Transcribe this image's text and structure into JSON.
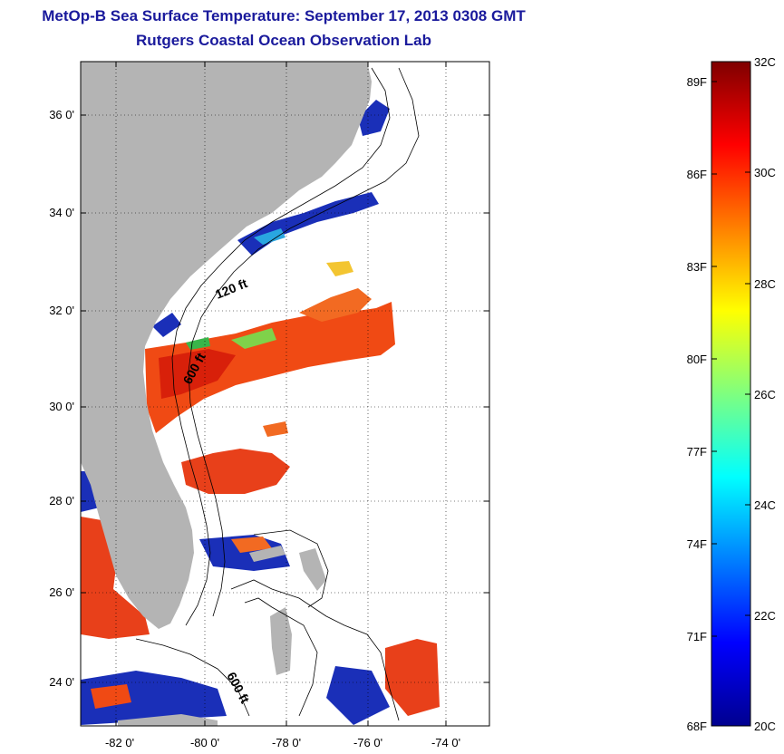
{
  "title": {
    "line1": "MetOp-B Sea Surface Temperature:  September 17, 2013 0308 GMT",
    "line2": "Rutgers Coastal Ocean Observation Lab"
  },
  "map": {
    "lat_ticks": [
      "36 0'",
      "34 0'",
      "32 0'",
      "30 0'",
      "28 0'",
      "26 0'",
      "24 0'"
    ],
    "lon_ticks": [
      "-82 0'",
      "-80 0'",
      "-78 0'",
      "-76 0'",
      "-74 0'"
    ],
    "contours": {
      "label_120": "120 ft",
      "label_600_north": "600 ft",
      "label_600_south": "600 ft"
    },
    "colors": {
      "land": "#b4b4b4",
      "ocean": "#ffffff",
      "contour": "#000000",
      "warm_sst": "#f04a14",
      "hot_sst": "#d8200a",
      "cool_sst": "#1a2fb8"
    }
  },
  "colorbar": {
    "celsius_ticks": [
      "32C",
      "30C",
      "28C",
      "26C",
      "24C",
      "22C",
      "20C"
    ],
    "fahrenheit_ticks": [
      "89F",
      "86F",
      "83F",
      "80F",
      "77F",
      "74F",
      "71F",
      "68F"
    ],
    "colormap": "jet"
  }
}
